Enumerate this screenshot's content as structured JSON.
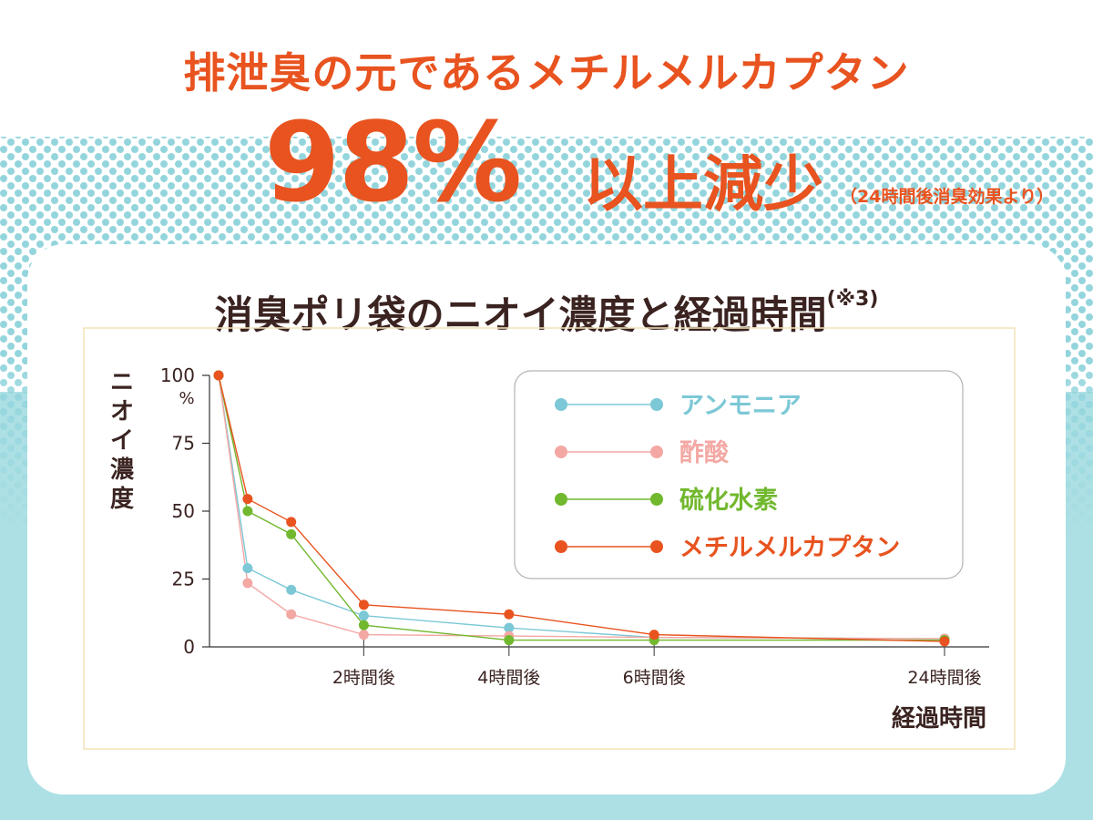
{
  "header": {
    "line1": "排泄臭の元であるメチルメルカプタン",
    "percent": "98%",
    "suffix": "以上減少",
    "note": "（24時間後消臭効果より）"
  },
  "chart_title": {
    "text": "消臭ポリ袋のニオイ濃度と経過時間",
    "note": "(※3)"
  },
  "colors": {
    "accent": "#e8531f",
    "background": "#ade0e5",
    "title_text": "#3a2320"
  },
  "chart_data": {
    "type": "line",
    "title": "消臭ポリ袋のニオイ濃度と経過時間",
    "ylabel": "ニオイ濃度",
    "xlabel": "経過時間",
    "y_unit": "%",
    "ylim": [
      0,
      100
    ],
    "y_ticks": [
      0,
      25,
      50,
      75,
      100
    ],
    "y_tick_labels": [
      "0",
      "25",
      "50",
      "75",
      "100"
    ],
    "x_ticks": [
      {
        "x": 2,
        "label": "2時間後"
      },
      {
        "x": 4,
        "label": "4時間後"
      },
      {
        "x": 6,
        "label": "6時間後"
      },
      {
        "x": 10,
        "label": "24時間後"
      }
    ],
    "x": [
      0,
      0.4,
      1,
      2,
      4,
      6,
      10
    ],
    "series": [
      {
        "name": "アンモニア",
        "color": "#7cc8d6",
        "values": [
          100,
          29,
          21,
          11.5,
          7,
          3.5,
          3
        ]
      },
      {
        "name": "酢酸",
        "color": "#f3a8a4",
        "values": [
          100,
          23.5,
          12,
          4.5,
          4,
          3.5,
          3
        ]
      },
      {
        "name": "硫化水素",
        "color": "#71b82e",
        "values": [
          100,
          50,
          41.5,
          8,
          2.5,
          2.5,
          2.5
        ]
      },
      {
        "name": "メチルメルカプタン",
        "color": "#e8531f",
        "values": [
          100,
          54.5,
          46,
          15.5,
          12,
          4.5,
          2
        ]
      }
    ],
    "legend_position": "top-right"
  }
}
